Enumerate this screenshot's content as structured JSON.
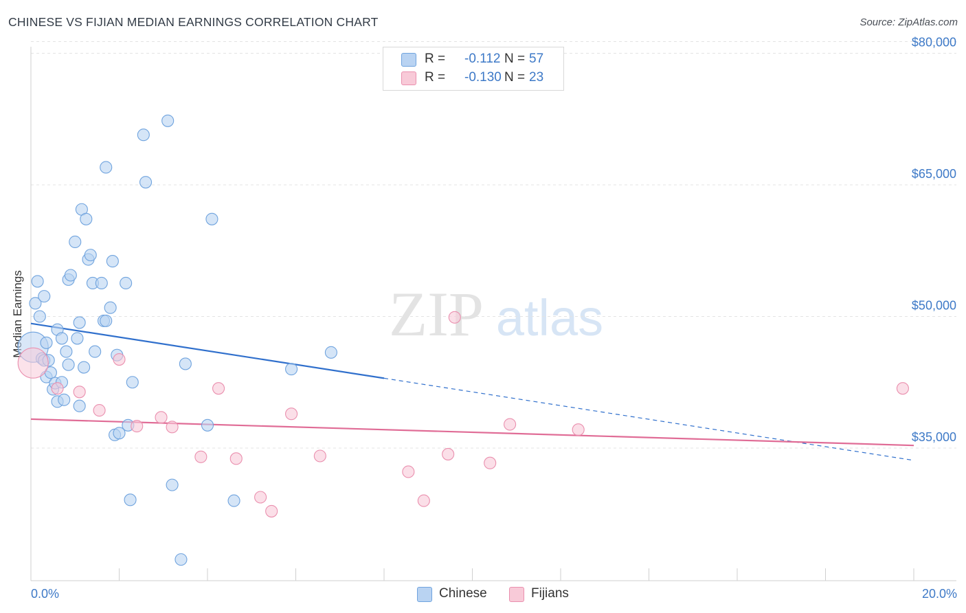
{
  "title": "CHINESE VS FIJIAN MEDIAN EARNINGS CORRELATION CHART",
  "source": "Source: ZipAtlas.com",
  "watermark": {
    "zip": "ZIP",
    "atlas": "atlas"
  },
  "colors": {
    "blue_fill": "#b9d3f2",
    "blue_stroke": "#6fa3de",
    "blue_line": "#2f6fcc",
    "pink_fill": "#f8cad8",
    "pink_stroke": "#ea8fae",
    "pink_line": "#e06c96",
    "grid": "#e3e3e3",
    "axis_text": "#3d79c7"
  },
  "legend_top": {
    "rows": [
      {
        "r_label": "R =",
        "r_value": "-0.112",
        "n_label": "N =",
        "n_value": "57"
      },
      {
        "r_label": "R =",
        "r_value": "-0.130",
        "n_label": "N =",
        "n_value": "23"
      }
    ]
  },
  "legend_bottom": [
    "Chinese",
    "Fijians"
  ],
  "chart_data": {
    "type": "scatter",
    "title": "CHINESE VS FIJIAN MEDIAN EARNINGS CORRELATION CHART",
    "xlabel": "",
    "ylabel": "Median Earnings",
    "xlim": [
      0,
      20
    ],
    "ylim": [
      20000,
      83000
    ],
    "x_tick_labels": [
      "0.0%",
      "20.0%"
    ],
    "y_ticks": [
      35000,
      50000,
      65000,
      80000
    ],
    "y_tick_labels": [
      "$35,000",
      "$50,000",
      "$65,000",
      "$80,000"
    ],
    "grid": true,
    "legend_position": "top-center",
    "series": [
      {
        "name": "Chinese",
        "r": -0.112,
        "n": 57,
        "trend": {
          "x0": 0.0,
          "y0": 49200,
          "x_solid_end": 8.0,
          "x1": 20.0,
          "y1": 33600
        },
        "points": [
          {
            "x": 0.05,
            "y": 46500,
            "big": true
          },
          {
            "x": 0.1,
            "y": 51500
          },
          {
            "x": 0.15,
            "y": 54000
          },
          {
            "x": 0.2,
            "y": 50000
          },
          {
            "x": 0.25,
            "y": 45200
          },
          {
            "x": 0.3,
            "y": 52300
          },
          {
            "x": 0.3,
            "y": 45000
          },
          {
            "x": 0.35,
            "y": 47000
          },
          {
            "x": 0.35,
            "y": 43100
          },
          {
            "x": 0.4,
            "y": 45000
          },
          {
            "x": 0.45,
            "y": 43600
          },
          {
            "x": 0.5,
            "y": 41700
          },
          {
            "x": 0.55,
            "y": 42400
          },
          {
            "x": 0.6,
            "y": 40300
          },
          {
            "x": 0.6,
            "y": 48500
          },
          {
            "x": 0.7,
            "y": 42500
          },
          {
            "x": 0.7,
            "y": 47500
          },
          {
            "x": 0.75,
            "y": 40500
          },
          {
            "x": 0.8,
            "y": 46000
          },
          {
            "x": 0.85,
            "y": 44500
          },
          {
            "x": 0.85,
            "y": 54200
          },
          {
            "x": 0.9,
            "y": 54700
          },
          {
            "x": 1.0,
            "y": 58500
          },
          {
            "x": 1.05,
            "y": 47500
          },
          {
            "x": 1.1,
            "y": 39800
          },
          {
            "x": 1.1,
            "y": 49300
          },
          {
            "x": 1.15,
            "y": 62200
          },
          {
            "x": 1.2,
            "y": 44200
          },
          {
            "x": 1.25,
            "y": 61100
          },
          {
            "x": 1.3,
            "y": 56500
          },
          {
            "x": 1.35,
            "y": 57000
          },
          {
            "x": 1.4,
            "y": 53800
          },
          {
            "x": 1.45,
            "y": 46000
          },
          {
            "x": 1.6,
            "y": 53800
          },
          {
            "x": 1.65,
            "y": 49500
          },
          {
            "x": 1.7,
            "y": 49500
          },
          {
            "x": 1.7,
            "y": 67000
          },
          {
            "x": 1.8,
            "y": 51000
          },
          {
            "x": 1.85,
            "y": 56300
          },
          {
            "x": 1.9,
            "y": 36500
          },
          {
            "x": 1.95,
            "y": 45600
          },
          {
            "x": 2.0,
            "y": 36700
          },
          {
            "x": 2.15,
            "y": 53800
          },
          {
            "x": 2.2,
            "y": 37600
          },
          {
            "x": 2.25,
            "y": 29100
          },
          {
            "x": 2.3,
            "y": 42500
          },
          {
            "x": 2.55,
            "y": 70700
          },
          {
            "x": 2.6,
            "y": 65300
          },
          {
            "x": 3.1,
            "y": 72300
          },
          {
            "x": 3.2,
            "y": 30800
          },
          {
            "x": 3.4,
            "y": 22300
          },
          {
            "x": 3.5,
            "y": 44600
          },
          {
            "x": 4.0,
            "y": 37600
          },
          {
            "x": 4.1,
            "y": 61100
          },
          {
            "x": 4.6,
            "y": 29000
          },
          {
            "x": 5.9,
            "y": 44000
          },
          {
            "x": 6.8,
            "y": 45900
          }
        ]
      },
      {
        "name": "Fijians",
        "r": -0.13,
        "n": 23,
        "trend": {
          "x0": 0.0,
          "y0": 38300,
          "x1": 20.0,
          "y1": 35300
        },
        "points": [
          {
            "x": 0.05,
            "y": 44700,
            "big": true
          },
          {
            "x": 0.6,
            "y": 41800
          },
          {
            "x": 1.1,
            "y": 41400
          },
          {
            "x": 1.55,
            "y": 39300
          },
          {
            "x": 2.0,
            "y": 45100
          },
          {
            "x": 2.4,
            "y": 37500
          },
          {
            "x": 2.95,
            "y": 38500
          },
          {
            "x": 3.2,
            "y": 37400
          },
          {
            "x": 3.85,
            "y": 34000
          },
          {
            "x": 4.25,
            "y": 41800
          },
          {
            "x": 4.65,
            "y": 33800
          },
          {
            "x": 5.2,
            "y": 29400
          },
          {
            "x": 5.45,
            "y": 27800
          },
          {
            "x": 5.9,
            "y": 38900
          },
          {
            "x": 6.55,
            "y": 34100
          },
          {
            "x": 8.55,
            "y": 32300
          },
          {
            "x": 8.9,
            "y": 29000
          },
          {
            "x": 9.45,
            "y": 34300
          },
          {
            "x": 9.6,
            "y": 49900
          },
          {
            "x": 10.4,
            "y": 33300
          },
          {
            "x": 10.85,
            "y": 37700
          },
          {
            "x": 12.4,
            "y": 37100
          },
          {
            "x": 19.75,
            "y": 41800
          }
        ]
      }
    ]
  }
}
